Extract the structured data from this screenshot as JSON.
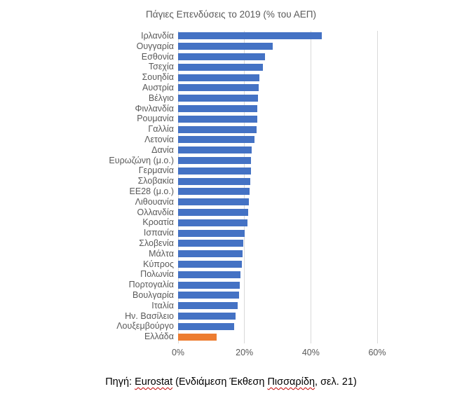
{
  "chart_data": {
    "type": "bar",
    "orientation": "horizontal",
    "title": "Πάγιες Επενδύσεις το 2019 (% του ΑΕΠ)",
    "categories": [
      "Ιρλανδία",
      "Ουγγαρία",
      "Εσθονία",
      "Τσεχία",
      "Σουηδία",
      "Αυστρία",
      "Βέλγιο",
      "Φινλανδία",
      "Ρουμανία",
      "Γαλλία",
      "Λετονία",
      "Δανία",
      "Ευρωζώνη (μ.ο.)",
      "Γερμανία",
      "Σλοβακία",
      "ΕΕ28 (μ.ο.)",
      "Λιθουανία",
      "Ολλανδία",
      "Κροατία",
      "Ισπανία",
      "Σλοβενία",
      "Μάλτα",
      "Κύπρος",
      "Πολωνία",
      "Πορτογαλία",
      "Βουλγαρία",
      "Ιταλία",
      "Ην. Βασίλειο",
      "Λουξεμβούργο",
      "Ελλάδα"
    ],
    "values": [
      43.3,
      28.6,
      26.1,
      25.5,
      24.5,
      24.3,
      24.0,
      23.9,
      23.8,
      23.6,
      23.0,
      22.2,
      22.0,
      21.9,
      21.7,
      21.5,
      21.3,
      21.1,
      20.9,
      20.1,
      19.6,
      19.4,
      19.2,
      18.7,
      18.5,
      18.3,
      18.0,
      17.3,
      16.8,
      11.6
    ],
    "unit": "%",
    "xlabel": "",
    "ylabel": "",
    "xlim": [
      0,
      60
    ],
    "x_tick_values": [
      0,
      20,
      40,
      60
    ],
    "x_tick_labels": [
      "0%",
      "20%",
      "40%",
      "60%"
    ],
    "grid": "vertical",
    "legend": "none",
    "highlight_category": "Ελλάδα",
    "colors": {
      "bar": "#4472C4",
      "highlight": "#ED7D31",
      "gridline": "#D9D9D9",
      "title_text": "#595959",
      "label_text": "#595959",
      "tick_text": "#595959"
    }
  },
  "footer": {
    "prefix": "Πηγή: ",
    "source_word": "Eurostat",
    "middle": " (Ενδιάμεση Έκθεση ",
    "report_word": "Πισσαρίδη",
    "suffix": ", σελ. 21)"
  }
}
